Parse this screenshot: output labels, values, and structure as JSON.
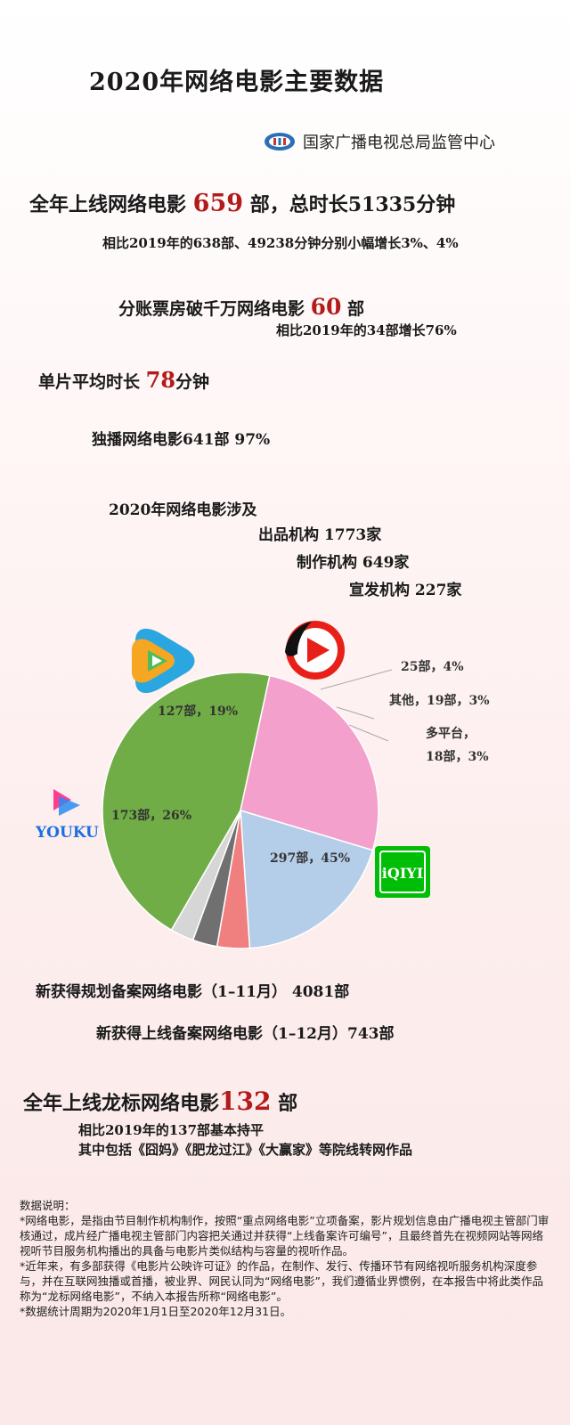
{
  "title": "2020年网络电影主要数据",
  "source": "国家广播电视总局监管中心",
  "stat1": {
    "prefix": "全年上线网络电影 ",
    "num": "659",
    "suffix": " 部，总时长51335分钟",
    "sub": "相比2019年的638部、49238分钟分别小幅增长3%、4%"
  },
  "stat2": {
    "prefix": "分账票房破千万网络电影 ",
    "num": "60",
    "suffix": " 部",
    "sub": "相比2019年的34部增长76%"
  },
  "stat3": {
    "prefix": "单片平均时长 ",
    "num": "78",
    "suffix": "分钟"
  },
  "stat4": "独播网络电影641部  97%",
  "orgs": {
    "heading": "2020年网络电影涉及",
    "line1": "出品机构   1773家",
    "line2": "制作机构 649家",
    "line3": "宣发机构 227家"
  },
  "chart_data": {
    "type": "pie",
    "slices": [
      {
        "label": "297部，45%",
        "value": 297,
        "percent": 45,
        "platform": "iQIYI",
        "color": "#70ad47"
      },
      {
        "label": "173部，26%",
        "value": 173,
        "percent": 26,
        "platform": "Youku",
        "color": "#f4a0cc"
      },
      {
        "label": "127部，19%",
        "value": 127,
        "percent": 19,
        "platform": "Tencent Video",
        "color": "#b4cde8"
      },
      {
        "label": "25部，4%",
        "value": 25,
        "percent": 4,
        "platform": "Mango TV",
        "color": "#f08080"
      },
      {
        "label": "其他，19部，3%",
        "value": 19,
        "percent": 3,
        "platform": "其他",
        "color": "#707070"
      },
      {
        "label": "多平台，18部，3%",
        "value": 18,
        "percent": 3,
        "platform": "多平台",
        "color": "#d6d6d6"
      }
    ],
    "ext_labels": {
      "mango": "25部，4%",
      "other": "其他，19部，3%",
      "multi1": "多平台，",
      "multi2": "18部，3%"
    },
    "logos": {
      "youku": "YOUKU",
      "iqiyi": "iQIYI"
    }
  },
  "record1": "新获得规划备案网络电影（1–11月）  4081部",
  "record2": "新获得上线备案网络电影（1–12月）743部",
  "dragon": {
    "prefix": "全年上线龙标网络电影",
    "num": "132",
    "suffix": " 部",
    "sub1": "相比2019年的137部基本持平",
    "sub2": "其中包括《囧妈》《肥龙过江》《大赢家》等院线转网作品"
  },
  "notes": {
    "heading": "数据说明：",
    "p1": "*网络电影，是指由节目制作机构制作，按照“重点网络电影”立项备案，影片规划信息由广播电视主管部门审核通过，成片经广播电视主管部门内容把关通过并获得“上线备案许可编号”，且最终首先在视频网站等网络视听节目服务机构播出的具备与电影片类似结构与容量的视听作品。",
    "p2": "*近年来，有多部获得《电影片公映许可证》的作品，在制作、发行、传播环节有网络视听服务机构深度参与，并在互联网独播或首播，被业界、网民认同为“网络电影”，我们遵循业界惯例，在本报告中将此类作品称为“龙标网络电影”，不纳入本报告所称“网络电影”。",
    "p3": "*数据统计周期为2020年1月1日至2020年12月31日。"
  }
}
